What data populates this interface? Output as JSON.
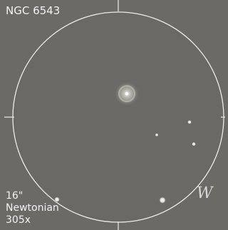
{
  "sketch": {
    "object": "NGC 6543",
    "telescope": [
      "16\"",
      "Newtonian",
      "305x"
    ],
    "direction": "W"
  }
}
